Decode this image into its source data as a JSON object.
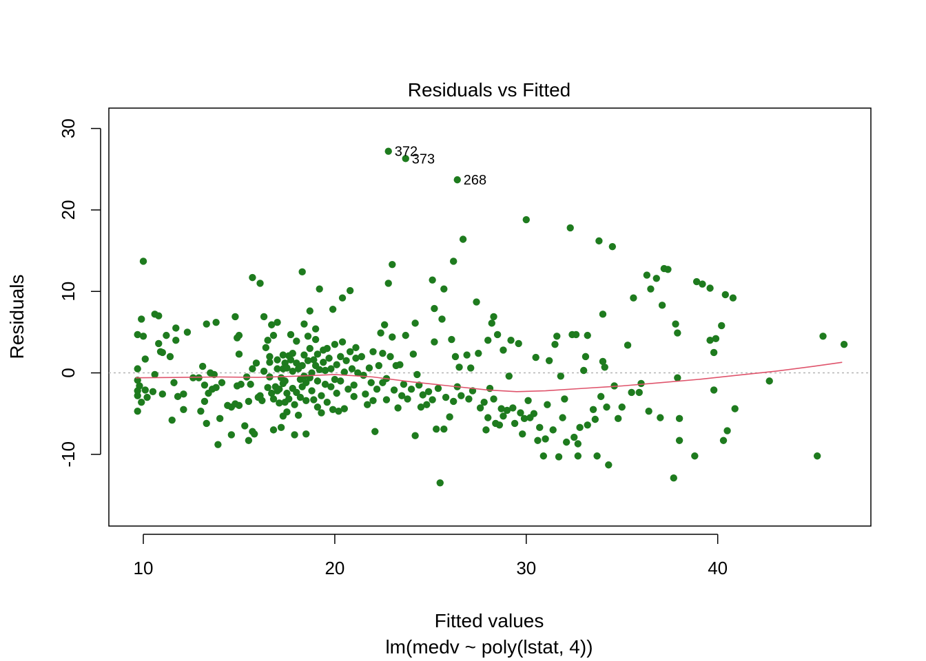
{
  "chart_data": {
    "type": "scatter",
    "title": "Residuals vs Fitted",
    "xlabel": "Fitted values",
    "subtitle": "lm(medv ~ poly(lstat, 4))",
    "ylabel": "Residuals",
    "xlim": [
      8.2,
      48.0
    ],
    "ylim": [
      -18.8,
      32.5
    ],
    "x_ticks": [
      10,
      20,
      30,
      40
    ],
    "y_ticks": [
      -10,
      0,
      10,
      20,
      30
    ],
    "reference_line": {
      "y": 0,
      "style": "dotted",
      "color": "#b3b3b3"
    },
    "point_color": "#1e7b1e",
    "smooth_color": "#df536b",
    "smooth": {
      "x": [
        9.6,
        12,
        14,
        16,
        18,
        20,
        22,
        24,
        26,
        28,
        29.5,
        31,
        33,
        35,
        37,
        39,
        41,
        43,
        45,
        46.5
      ],
      "y": [
        -0.6,
        -0.55,
        -0.5,
        -0.55,
        -0.4,
        -0.2,
        -0.5,
        -1.1,
        -1.6,
        -2.1,
        -2.3,
        -2.2,
        -1.9,
        -1.6,
        -1.2,
        -0.8,
        -0.3,
        0.2,
        0.8,
        1.3
      ]
    },
    "labeled_points": [
      {
        "label": "372",
        "x": 22.8,
        "y": 27.2
      },
      {
        "label": "373",
        "x": 23.7,
        "y": 26.3
      },
      {
        "label": "268",
        "x": 26.4,
        "y": 23.7
      }
    ],
    "points": [
      [
        9.7,
        4.7
      ],
      [
        9.8,
        -1.6
      ],
      [
        9.7,
        -2.8
      ],
      [
        9.9,
        6.6
      ],
      [
        10.0,
        13.7
      ],
      [
        10.0,
        4.5
      ],
      [
        10.1,
        -2.1
      ],
      [
        9.9,
        -3.6
      ],
      [
        10.1,
        1.7
      ],
      [
        10.2,
        -3.0
      ],
      [
        9.7,
        -4.7
      ],
      [
        9.7,
        0.5
      ],
      [
        9.7,
        -0.9
      ],
      [
        9.7,
        -2.2
      ],
      [
        10.5,
        -2.3
      ],
      [
        10.6,
        7.2
      ],
      [
        10.8,
        7.0
      ],
      [
        10.6,
        -0.2
      ],
      [
        10.8,
        3.6
      ],
      [
        10.9,
        2.6
      ],
      [
        11.0,
        2.5
      ],
      [
        11.0,
        -2.6
      ],
      [
        11.2,
        4.6
      ],
      [
        11.4,
        2.0
      ],
      [
        11.5,
        -5.8
      ],
      [
        11.6,
        -1.2
      ],
      [
        11.7,
        5.5
      ],
      [
        11.7,
        4.0
      ],
      [
        11.8,
        -2.9
      ],
      [
        12.1,
        -4.5
      ],
      [
        12.1,
        -2.6
      ],
      [
        12.3,
        5.0
      ],
      [
        12.6,
        -0.6
      ],
      [
        12.9,
        -0.6
      ],
      [
        13.0,
        -4.7
      ],
      [
        13.1,
        0.8
      ],
      [
        13.2,
        -3.5
      ],
      [
        13.2,
        -1.5
      ],
      [
        13.3,
        6.0
      ],
      [
        13.3,
        -6.2
      ],
      [
        13.4,
        -2.5
      ],
      [
        13.5,
        0.0
      ],
      [
        13.6,
        -2.0
      ],
      [
        13.7,
        -0.2
      ],
      [
        13.8,
        -1.8
      ],
      [
        13.8,
        6.2
      ],
      [
        13.9,
        -8.8
      ],
      [
        14.0,
        -5.6
      ],
      [
        14.1,
        -1.2
      ],
      [
        14.4,
        -4.0
      ],
      [
        14.6,
        -7.6
      ],
      [
        14.6,
        -4.2
      ],
      [
        14.8,
        6.9
      ],
      [
        14.8,
        -3.8
      ],
      [
        14.9,
        -1.6
      ],
      [
        14.9,
        4.3
      ],
      [
        15.0,
        4.6
      ],
      [
        15.0,
        -4.0
      ],
      [
        15.0,
        2.3
      ],
      [
        15.1,
        -1.4
      ],
      [
        15.3,
        -6.5
      ],
      [
        15.4,
        -0.5
      ],
      [
        15.5,
        -3.5
      ],
      [
        15.5,
        -8.3
      ],
      [
        15.6,
        -1.4
      ],
      [
        15.7,
        0.5
      ],
      [
        15.7,
        -7.2
      ],
      [
        15.7,
        11.7
      ],
      [
        15.8,
        -7.5
      ],
      [
        15.9,
        1.2
      ],
      [
        16.0,
        -3.0
      ],
      [
        16.1,
        11.0
      ],
      [
        16.1,
        -2.8
      ],
      [
        16.2,
        -3.4
      ],
      [
        16.3,
        6.9
      ],
      [
        16.3,
        0.2
      ],
      [
        16.4,
        3.1
      ],
      [
        16.5,
        -1.8
      ],
      [
        16.5,
        4.0
      ],
      [
        16.6,
        2.0
      ],
      [
        16.6,
        -0.5
      ],
      [
        16.6,
        1.3
      ],
      [
        16.7,
        -2.5
      ],
      [
        16.7,
        5.9
      ],
      [
        16.8,
        4.6
      ],
      [
        16.8,
        -7.0
      ],
      [
        16.8,
        -3.2
      ],
      [
        16.9,
        -1.7
      ],
      [
        17.0,
        -2.2
      ],
      [
        17.0,
        1.6
      ],
      [
        17.0,
        0.5
      ],
      [
        17.0,
        6.2
      ],
      [
        17.1,
        -3.7
      ],
      [
        17.1,
        -2.0
      ],
      [
        17.2,
        -0.6
      ],
      [
        17.2,
        -6.7
      ],
      [
        17.3,
        -5.3
      ],
      [
        17.3,
        2.2
      ],
      [
        17.3,
        0.5
      ],
      [
        17.3,
        -1.3
      ],
      [
        17.4,
        -3.6
      ],
      [
        17.4,
        -1.0
      ],
      [
        17.4,
        1.2
      ],
      [
        17.5,
        -4.8
      ],
      [
        17.5,
        -2.5
      ],
      [
        17.5,
        0.6
      ],
      [
        17.6,
        2.1
      ],
      [
        17.6,
        -3.2
      ],
      [
        17.7,
        1.6
      ],
      [
        17.7,
        4.7
      ],
      [
        17.8,
        -1.9
      ],
      [
        17.8,
        0.2
      ],
      [
        17.8,
        2.4
      ],
      [
        17.9,
        -3.9
      ],
      [
        17.9,
        -7.6
      ],
      [
        18.0,
        3.9
      ],
      [
        18.0,
        1.2
      ],
      [
        18.0,
        -2.4
      ],
      [
        18.1,
        0.5
      ],
      [
        18.1,
        -5.2
      ],
      [
        18.2,
        -0.8
      ],
      [
        18.2,
        -3.0
      ],
      [
        18.3,
        -1.7
      ],
      [
        18.3,
        0.9
      ],
      [
        18.3,
        12.4
      ],
      [
        18.4,
        2.2
      ],
      [
        18.4,
        -0.4
      ],
      [
        18.4,
        6.0
      ],
      [
        18.5,
        -7.5
      ],
      [
        18.5,
        -3.4
      ],
      [
        18.5,
        -1.2
      ],
      [
        18.6,
        1.5
      ],
      [
        18.6,
        4.5
      ],
      [
        18.7,
        -0.6
      ],
      [
        18.7,
        3.0
      ],
      [
        18.7,
        7.6
      ],
      [
        18.8,
        -2.2
      ],
      [
        18.8,
        0.0
      ],
      [
        18.9,
        1.6
      ],
      [
        18.9,
        -3.3
      ],
      [
        19.0,
        0.9
      ],
      [
        19.0,
        4.1
      ],
      [
        19.0,
        5.4
      ],
      [
        19.1,
        -4.2
      ],
      [
        19.1,
        2.3
      ],
      [
        19.1,
        -1.0
      ],
      [
        19.2,
        0.4
      ],
      [
        19.2,
        10.3
      ],
      [
        19.3,
        -2.8
      ],
      [
        19.3,
        -4.9
      ],
      [
        19.4,
        1.3
      ],
      [
        19.4,
        2.8
      ],
      [
        19.5,
        -1.4
      ],
      [
        19.5,
        0.3
      ],
      [
        19.6,
        3.0
      ],
      [
        19.6,
        -3.6
      ],
      [
        19.7,
        1.8
      ],
      [
        19.8,
        -1.7
      ],
      [
        19.8,
        0.5
      ],
      [
        19.9,
        -4.5
      ],
      [
        19.9,
        7.8
      ],
      [
        20.0,
        3.5
      ],
      [
        20.0,
        -0.8
      ],
      [
        20.1,
        1.0
      ],
      [
        20.1,
        -2.5
      ],
      [
        20.2,
        -4.7
      ],
      [
        20.3,
        2.0
      ],
      [
        20.3,
        -1.0
      ],
      [
        20.4,
        9.2
      ],
      [
        20.4,
        3.8
      ],
      [
        20.5,
        0.1
      ],
      [
        20.5,
        -4.4
      ],
      [
        20.6,
        1.5
      ],
      [
        20.7,
        -2.0
      ],
      [
        20.8,
        2.6
      ],
      [
        20.8,
        10.1
      ],
      [
        20.9,
        0.5
      ],
      [
        21.0,
        -1.5
      ],
      [
        21.0,
        -2.9
      ],
      [
        21.1,
        1.8
      ],
      [
        21.1,
        3.1
      ],
      [
        21.2,
        0.0
      ],
      [
        21.4,
        2.0
      ],
      [
        21.5,
        -0.3
      ],
      [
        21.6,
        -2.6
      ],
      [
        21.7,
        -3.9
      ],
      [
        21.8,
        0.6
      ],
      [
        21.9,
        -1.2
      ],
      [
        22.0,
        -3.4
      ],
      [
        22.0,
        2.6
      ],
      [
        22.1,
        -7.2
      ],
      [
        22.2,
        -2.0
      ],
      [
        22.3,
        0.9
      ],
      [
        22.4,
        4.9
      ],
      [
        22.5,
        2.4
      ],
      [
        22.5,
        -1.2
      ],
      [
        22.6,
        5.9
      ],
      [
        22.7,
        -3.3
      ],
      [
        22.7,
        -0.7
      ],
      [
        22.8,
        11.0
      ],
      [
        22.9,
        2.0
      ],
      [
        23.0,
        13.3
      ],
      [
        23.0,
        4.4
      ],
      [
        23.1,
        -2.1
      ],
      [
        23.2,
        0.9
      ],
      [
        23.3,
        -4.3
      ],
      [
        23.4,
        1.0
      ],
      [
        23.5,
        -2.8
      ],
      [
        23.6,
        -1.4
      ],
      [
        23.7,
        4.6
      ],
      [
        23.8,
        -3.2
      ],
      [
        24.0,
        -2.0
      ],
      [
        24.1,
        2.3
      ],
      [
        24.2,
        -7.7
      ],
      [
        24.2,
        6.1
      ],
      [
        24.3,
        -0.2
      ],
      [
        24.4,
        -1.5
      ],
      [
        24.5,
        -4.2
      ],
      [
        24.6,
        -2.7
      ],
      [
        24.8,
        -3.9
      ],
      [
        24.9,
        -2.3
      ],
      [
        25.1,
        -3.3
      ],
      [
        25.1,
        11.4
      ],
      [
        25.2,
        3.8
      ],
      [
        25.2,
        7.9
      ],
      [
        25.3,
        -6.9
      ],
      [
        25.4,
        -1.9
      ],
      [
        25.5,
        -13.5
      ],
      [
        25.6,
        6.6
      ],
      [
        25.7,
        10.3
      ],
      [
        25.7,
        -6.9
      ],
      [
        25.8,
        -3.0
      ],
      [
        26.0,
        -5.4
      ],
      [
        26.1,
        4.1
      ],
      [
        26.2,
        13.7
      ],
      [
        26.2,
        -3.5
      ],
      [
        26.3,
        2.0
      ],
      [
        26.4,
        -1.7
      ],
      [
        26.5,
        0.7
      ],
      [
        26.6,
        -2.8
      ],
      [
        26.7,
        16.4
      ],
      [
        26.9,
        2.2
      ],
      [
        27.0,
        -3.2
      ],
      [
        27.1,
        0.6
      ],
      [
        27.2,
        -2.2
      ],
      [
        27.4,
        8.7
      ],
      [
        27.5,
        2.4
      ],
      [
        27.6,
        -4.3
      ],
      [
        27.8,
        -3.6
      ],
      [
        27.9,
        -7.0
      ],
      [
        28.0,
        -5.5
      ],
      [
        28.0,
        4.0
      ],
      [
        28.1,
        -1.9
      ],
      [
        28.2,
        6.1
      ],
      [
        28.3,
        6.9
      ],
      [
        28.3,
        -3.2
      ],
      [
        28.4,
        -6.2
      ],
      [
        28.5,
        4.7
      ],
      [
        28.6,
        -6.4
      ],
      [
        28.7,
        -4.4
      ],
      [
        28.8,
        -5.3
      ],
      [
        28.8,
        2.8
      ],
      [
        29.0,
        -4.6
      ],
      [
        29.1,
        -0.4
      ],
      [
        29.2,
        4.0
      ],
      [
        29.3,
        -4.3
      ],
      [
        29.4,
        -6.2
      ],
      [
        29.6,
        3.6
      ],
      [
        29.7,
        -4.9
      ],
      [
        29.8,
        -7.5
      ],
      [
        29.9,
        -5.6
      ],
      [
        30.0,
        18.8
      ],
      [
        30.1,
        -3.4
      ],
      [
        30.2,
        -5.5
      ],
      [
        30.4,
        -5.0
      ],
      [
        30.5,
        1.9
      ],
      [
        30.6,
        -8.3
      ],
      [
        30.7,
        -6.7
      ],
      [
        30.9,
        -10.2
      ],
      [
        31.0,
        -8.1
      ],
      [
        31.1,
        -3.9
      ],
      [
        31.2,
        1.5
      ],
      [
        31.4,
        -7.0
      ],
      [
        31.5,
        3.5
      ],
      [
        31.6,
        4.5
      ],
      [
        31.7,
        -10.3
      ],
      [
        31.8,
        -0.4
      ],
      [
        31.9,
        -5.5
      ],
      [
        32.0,
        -3.2
      ],
      [
        32.1,
        -8.5
      ],
      [
        32.3,
        17.8
      ],
      [
        32.4,
        4.7
      ],
      [
        32.5,
        -7.9
      ],
      [
        32.6,
        4.7
      ],
      [
        32.7,
        -8.7
      ],
      [
        32.7,
        -10.2
      ],
      [
        32.8,
        -6.7
      ],
      [
        33.0,
        0.3
      ],
      [
        33.1,
        2.0
      ],
      [
        33.2,
        4.6
      ],
      [
        33.2,
        -6.4
      ],
      [
        33.5,
        -4.5
      ],
      [
        33.6,
        -5.7
      ],
      [
        33.7,
        -10.2
      ],
      [
        33.8,
        16.2
      ],
      [
        33.9,
        -2.9
      ],
      [
        34.0,
        7.2
      ],
      [
        34.0,
        1.4
      ],
      [
        34.1,
        0.7
      ],
      [
        34.2,
        -4.2
      ],
      [
        34.3,
        -11.3
      ],
      [
        34.5,
        15.5
      ],
      [
        34.6,
        -1.6
      ],
      [
        34.8,
        -5.6
      ],
      [
        35.0,
        -4.2
      ],
      [
        35.3,
        3.4
      ],
      [
        35.5,
        -2.4
      ],
      [
        35.6,
        9.2
      ],
      [
        35.9,
        -2.4
      ],
      [
        36.0,
        -1.3
      ],
      [
        36.3,
        12.0
      ],
      [
        36.4,
        -4.7
      ],
      [
        36.5,
        10.3
      ],
      [
        36.8,
        11.6
      ],
      [
        37.0,
        -5.5
      ],
      [
        37.1,
        8.3
      ],
      [
        37.2,
        12.8
      ],
      [
        37.4,
        12.7
      ],
      [
        37.7,
        -12.9
      ],
      [
        37.8,
        6.0
      ],
      [
        37.9,
        -0.6
      ],
      [
        37.9,
        4.9
      ],
      [
        38.0,
        -8.3
      ],
      [
        38.0,
        -5.6
      ],
      [
        38.8,
        -10.2
      ],
      [
        38.9,
        11.2
      ],
      [
        39.2,
        10.9
      ],
      [
        39.6,
        10.4
      ],
      [
        39.6,
        4.0
      ],
      [
        39.8,
        -2.1
      ],
      [
        39.8,
        2.5
      ],
      [
        39.9,
        4.2
      ],
      [
        40.2,
        5.8
      ],
      [
        40.3,
        -8.3
      ],
      [
        40.4,
        9.6
      ],
      [
        40.5,
        -7.1
      ],
      [
        40.8,
        9.2
      ],
      [
        40.9,
        -4.4
      ],
      [
        42.7,
        -1.0
      ],
      [
        45.2,
        -10.2
      ],
      [
        45.5,
        4.5
      ],
      [
        46.6,
        3.5
      ]
    ]
  }
}
